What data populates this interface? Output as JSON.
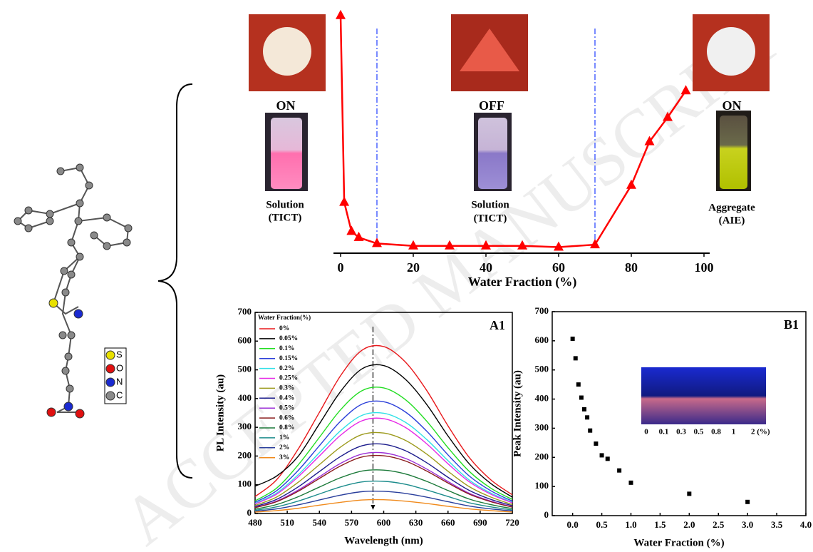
{
  "chart_data": [
    {
      "type": "line",
      "xlabel": "Water Fraction (%)",
      "x": [
        0,
        1,
        3,
        5,
        10,
        20,
        30,
        40,
        50,
        60,
        70,
        80,
        85,
        90,
        95
      ],
      "values": [
        98,
        21,
        9,
        6.5,
        4,
        3,
        3,
        3,
        3,
        2.5,
        3.5,
        28,
        46,
        56,
        67
      ],
      "color": "#ff0000",
      "marker": "triangle",
      "xlim": [
        0,
        100
      ],
      "xticks": [
        0,
        20,
        40,
        60,
        80,
        100
      ],
      "ylim": [
        0,
        100
      ],
      "vlines": [
        10,
        70
      ],
      "vline_color": "#1f3cff"
    },
    {
      "type": "line",
      "panel": "A1",
      "xlabel": "Wavelength (nm)",
      "ylabel": "PL Intensity (au)",
      "legend_title": "Water Fraction(%)",
      "legend": "upper left",
      "x": [
        480,
        500,
        520,
        540,
        560,
        580,
        600,
        620,
        640,
        660,
        680,
        700,
        720
      ],
      "series": [
        {
          "name": "0%",
          "color": "#e8191c",
          "values": [
            59,
            117,
            223,
            352,
            481,
            569,
            581,
            528,
            429,
            305,
            194,
            117,
            65
          ]
        },
        {
          "name": "0.05%",
          "color": "#000000",
          "values": [
            95,
            130,
            198,
            312,
            426,
            504,
            515,
            468,
            380,
            270,
            172,
            104,
            57
          ]
        },
        {
          "name": "0.1%",
          "color": "#22dd22",
          "values": [
            44,
            88,
            168,
            265,
            362,
            428,
            437,
            397,
            322,
            229,
            146,
            88,
            49
          ]
        },
        {
          "name": "0.15%",
          "color": "#2b3fd9",
          "values": [
            39,
            79,
            149,
            236,
            322,
            381,
            389,
            354,
            287,
            204,
            130,
            79,
            43
          ]
        },
        {
          "name": "0.2%",
          "color": "#2fe0e6",
          "values": [
            35,
            71,
            134,
            212,
            289,
            342,
            349,
            318,
            258,
            184,
            116,
            71,
            39
          ]
        },
        {
          "name": "0.25%",
          "color": "#e629e6",
          "values": [
            33,
            67,
            127,
            200,
            273,
            323,
            330,
            300,
            243,
            173,
            110,
            67,
            37
          ]
        },
        {
          "name": "0.3%",
          "color": "#9c9a1c",
          "values": [
            28,
            57,
            108,
            170,
            232,
            275,
            280,
            255,
            207,
            147,
            93,
            57,
            31
          ]
        },
        {
          "name": "0.4%",
          "color": "#1c1c8c",
          "values": [
            24,
            49,
            92,
            146,
            199,
            236,
            241,
            219,
            177,
            126,
            80,
            49,
            27
          ]
        },
        {
          "name": "0.5%",
          "color": "#9b2fd6",
          "values": [
            21,
            43,
            81,
            128,
            175,
            207,
            211,
            192,
            155,
            111,
            70,
            43,
            23
          ]
        },
        {
          "name": "0.6%",
          "color": "#8a1c1c",
          "values": [
            20,
            41,
            77,
            122,
            166,
            197,
            201,
            183,
            148,
            106,
            67,
            41,
            22
          ]
        },
        {
          "name": "0.8%",
          "color": "#1c7a3a",
          "values": [
            15,
            31,
            58,
            92,
            125,
            148,
            151,
            138,
            112,
            80,
            50,
            31,
            17
          ]
        },
        {
          "name": "1%",
          "color": "#1c8c8c",
          "values": [
            11,
            23,
            43,
            68,
            93,
            110,
            112,
            102,
            82,
            59,
            37,
            23,
            12
          ]
        },
        {
          "name": "2%",
          "color": "#2a3f9c",
          "values": [
            8,
            16,
            30,
            47,
            64,
            76,
            77,
            70,
            57,
            41,
            26,
            16,
            9
          ]
        },
        {
          "name": "3%",
          "color": "#f08a1c",
          "values": [
            5,
            10,
            18,
            29,
            39,
            47,
            48,
            43,
            35,
            25,
            16,
            10,
            5
          ]
        }
      ],
      "xlim": [
        480,
        720
      ],
      "xticks": [
        480,
        510,
        540,
        570,
        600,
        630,
        660,
        690,
        720
      ],
      "ylim": [
        0,
        700
      ],
      "yticks": [
        0,
        100,
        200,
        300,
        400,
        500,
        600,
        700
      ],
      "vlines": [
        590
      ],
      "vline_color": "#000000"
    },
    {
      "type": "scatter",
      "panel": "B1",
      "xlabel": "Water Fraction (%)",
      "ylabel": "Peak Intensity (au)",
      "x": [
        0,
        0.05,
        0.1,
        0.15,
        0.2,
        0.25,
        0.3,
        0.4,
        0.5,
        0.6,
        0.8,
        1,
        2,
        3
      ],
      "values": [
        607,
        540,
        450,
        405,
        365,
        337,
        292,
        247,
        207,
        195,
        155,
        113,
        75,
        47
      ],
      "color": "#000000",
      "xlim": [
        -0.35,
        4.0
      ],
      "xticks": [
        {
          "value": 0,
          "label": "0.0"
        },
        0.5,
        {
          "value": 1,
          "label": "1.0"
        },
        1.5,
        {
          "value": 2,
          "label": "2.0"
        },
        2.5,
        {
          "value": 3,
          "label": "3.0"
        },
        3.5,
        {
          "value": 4,
          "label": "4.0"
        }
      ],
      "ylim": [
        0,
        700
      ],
      "yticks": [
        0,
        100,
        200,
        300,
        400,
        500,
        600,
        700
      ],
      "inset_labels": [
        "0",
        "0.1",
        "0.3",
        "0.5",
        "0.8",
        "1",
        "2 (%)"
      ]
    }
  ],
  "figure": {
    "labels": [
      "ON",
      "OFF",
      "ON",
      "Solution",
      "(TICT)",
      "Solution",
      "(TICT)",
      "Aggregate",
      "(AIE)"
    ],
    "atoms": [
      "S",
      "O",
      "N",
      "C"
    ],
    "watermark": "ACCEPTED MANUSCRIPT"
  }
}
